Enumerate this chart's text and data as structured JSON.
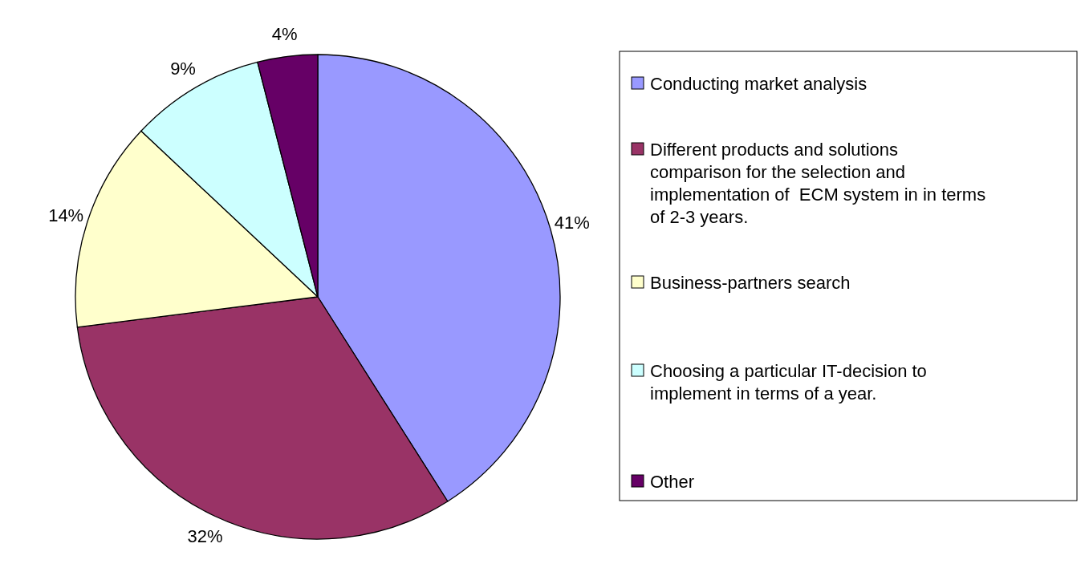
{
  "chart_data": {
    "type": "pie",
    "categories": [
      "Conducting market analysis",
      "Different products and solutions comparison for the selection and implementation of  ECM system in in terms of 2-3 years.",
      "Business-partners search",
      "Choosing a particular IT-decision to implement in terms of a year.",
      "Other"
    ],
    "values": [
      41,
      32,
      14,
      9,
      4
    ],
    "colors": [
      "#9999ff",
      "#993366",
      "#ffffcc",
      "#ccffff",
      "#660066"
    ],
    "value_labels": [
      "41%",
      "32%",
      "14%",
      "9%",
      "4%"
    ],
    "legend": "right"
  }
}
